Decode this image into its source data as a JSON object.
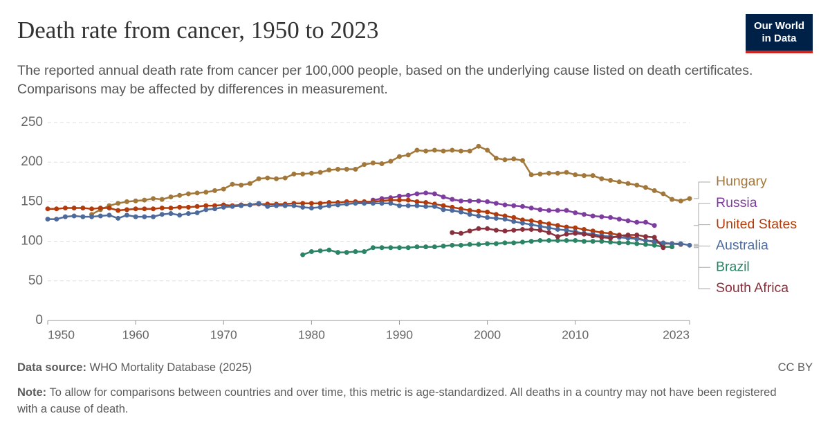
{
  "chart_data": {
    "type": "line",
    "title": "Death rate from cancer, 1950 to 2023",
    "subtitle": "The reported annual death rate from cancer per 100,000 people, based on the underlying cause listed on death certificates. Comparisons may be affected by differences in measurement.",
    "logo": "Our World in Data",
    "source_label": "Data source:",
    "source": "WHO Mortality Database (2025)",
    "license": "CC BY",
    "note_label": "Note:",
    "note": "To allow for comparisons between countries and over time, this metric is age-standardized. All deaths in a country may not have been registered with a cause of death.",
    "x": [
      1950,
      1951,
      1952,
      1953,
      1954,
      1955,
      1956,
      1957,
      1958,
      1959,
      1960,
      1961,
      1962,
      1963,
      1964,
      1965,
      1966,
      1967,
      1968,
      1969,
      1970,
      1971,
      1972,
      1973,
      1974,
      1975,
      1976,
      1977,
      1978,
      1979,
      1980,
      1981,
      1982,
      1983,
      1984,
      1985,
      1986,
      1987,
      1988,
      1989,
      1990,
      1991,
      1992,
      1993,
      1994,
      1995,
      1996,
      1997,
      1998,
      1999,
      2000,
      2001,
      2002,
      2003,
      2004,
      2005,
      2006,
      2007,
      2008,
      2009,
      2010,
      2011,
      2012,
      2013,
      2014,
      2015,
      2016,
      2017,
      2018,
      2019,
      2020,
      2021,
      2022,
      2023
    ],
    "xlim": [
      1950,
      2023
    ],
    "xticks": [
      1950,
      1960,
      1970,
      1980,
      1990,
      2000,
      2010,
      2023
    ],
    "ylim": [
      0,
      250
    ],
    "yticks": [
      0,
      50,
      100,
      150,
      200,
      250
    ],
    "grid": true,
    "series": [
      {
        "name": "Hungary",
        "color": "#a2773a",
        "values": [
          null,
          null,
          null,
          null,
          null,
          134,
          140,
          145,
          148,
          150,
          151,
          152,
          154,
          153,
          156,
          158,
          160,
          161,
          162,
          164,
          166,
          172,
          171,
          173,
          179,
          180,
          179,
          180,
          185,
          185,
          186,
          187,
          190,
          191,
          191,
          191,
          197,
          199,
          198,
          201,
          207,
          209,
          215,
          214,
          215,
          214,
          215,
          214,
          214,
          220,
          215,
          205,
          203,
          204,
          202,
          184,
          185,
          186,
          186,
          187,
          184,
          183,
          183,
          179,
          177,
          175,
          173,
          171,
          168,
          164,
          160,
          153,
          151,
          154
        ]
      },
      {
        "name": "Russia",
        "color": "#7e3d9e",
        "values": [
          null,
          null,
          null,
          null,
          null,
          null,
          null,
          null,
          null,
          null,
          null,
          null,
          null,
          null,
          null,
          null,
          null,
          null,
          null,
          null,
          null,
          null,
          null,
          null,
          null,
          null,
          null,
          null,
          null,
          null,
          null,
          null,
          null,
          null,
          null,
          null,
          null,
          152,
          154,
          155,
          157,
          158,
          160,
          161,
          160,
          156,
          153,
          151,
          151,
          151,
          150,
          148,
          146,
          145,
          144,
          142,
          140,
          139,
          139,
          139,
          136,
          134,
          132,
          131,
          130,
          128,
          126,
          124,
          124,
          120,
          null,
          null,
          null,
          null
        ]
      },
      {
        "name": "United States",
        "color": "#b33b0b",
        "values": [
          141,
          141,
          142,
          142,
          142,
          141,
          142,
          142,
          139,
          140,
          141,
          141,
          141,
          142,
          142,
          143,
          143,
          144,
          145,
          145,
          146,
          145,
          146,
          146,
          147,
          147,
          147,
          147,
          148,
          148,
          148,
          148,
          149,
          149,
          150,
          150,
          150,
          150,
          151,
          152,
          152,
          152,
          150,
          149,
          147,
          145,
          143,
          141,
          139,
          138,
          137,
          134,
          132,
          130,
          127,
          126,
          124,
          122,
          120,
          118,
          117,
          115,
          113,
          111,
          110,
          108,
          106,
          104,
          101,
          99,
          97,
          97,
          96,
          null
        ]
      },
      {
        "name": "Australia",
        "color": "#4c6a9c",
        "values": [
          128,
          128,
          131,
          132,
          131,
          131,
          132,
          133,
          129,
          133,
          131,
          131,
          131,
          134,
          135,
          133,
          135,
          136,
          140,
          141,
          143,
          144,
          145,
          146,
          148,
          144,
          145,
          145,
          145,
          143,
          142,
          143,
          145,
          146,
          147,
          148,
          148,
          148,
          148,
          148,
          145,
          145,
          145,
          144,
          144,
          140,
          139,
          137,
          134,
          132,
          130,
          129,
          128,
          125,
          123,
          121,
          119,
          117,
          115,
          114,
          112,
          110,
          109,
          107,
          106,
          105,
          104,
          103,
          101,
          100,
          98,
          97,
          97,
          95
        ]
      },
      {
        "name": "Brazil",
        "color": "#2c8465",
        "values": [
          null,
          null,
          null,
          null,
          null,
          null,
          null,
          null,
          null,
          null,
          null,
          null,
          null,
          null,
          null,
          null,
          null,
          null,
          null,
          null,
          null,
          null,
          null,
          null,
          null,
          null,
          null,
          null,
          null,
          83,
          87,
          88,
          89,
          86,
          86,
          87,
          87,
          92,
          92,
          92,
          92,
          92,
          93,
          93,
          93,
          94,
          95,
          95,
          96,
          96,
          97,
          97,
          98,
          98,
          99,
          100,
          101,
          101,
          101,
          101,
          101,
          100,
          100,
          100,
          99,
          98,
          98,
          97,
          96,
          95,
          93,
          93,
          null,
          null
        ]
      },
      {
        "name": "South Africa",
        "color": "#8a2f3c",
        "values": [
          null,
          null,
          null,
          null,
          null,
          null,
          null,
          null,
          null,
          null,
          null,
          null,
          null,
          null,
          null,
          null,
          null,
          null,
          null,
          null,
          null,
          null,
          null,
          null,
          null,
          null,
          null,
          null,
          null,
          null,
          null,
          null,
          null,
          null,
          null,
          null,
          null,
          null,
          null,
          null,
          null,
          null,
          null,
          null,
          null,
          null,
          111,
          110,
          113,
          116,
          116,
          114,
          113,
          114,
          115,
          115,
          114,
          111,
          106,
          109,
          110,
          109,
          107,
          105,
          104,
          107,
          108,
          108,
          106,
          105,
          92,
          null,
          null,
          null
        ]
      }
    ]
  }
}
